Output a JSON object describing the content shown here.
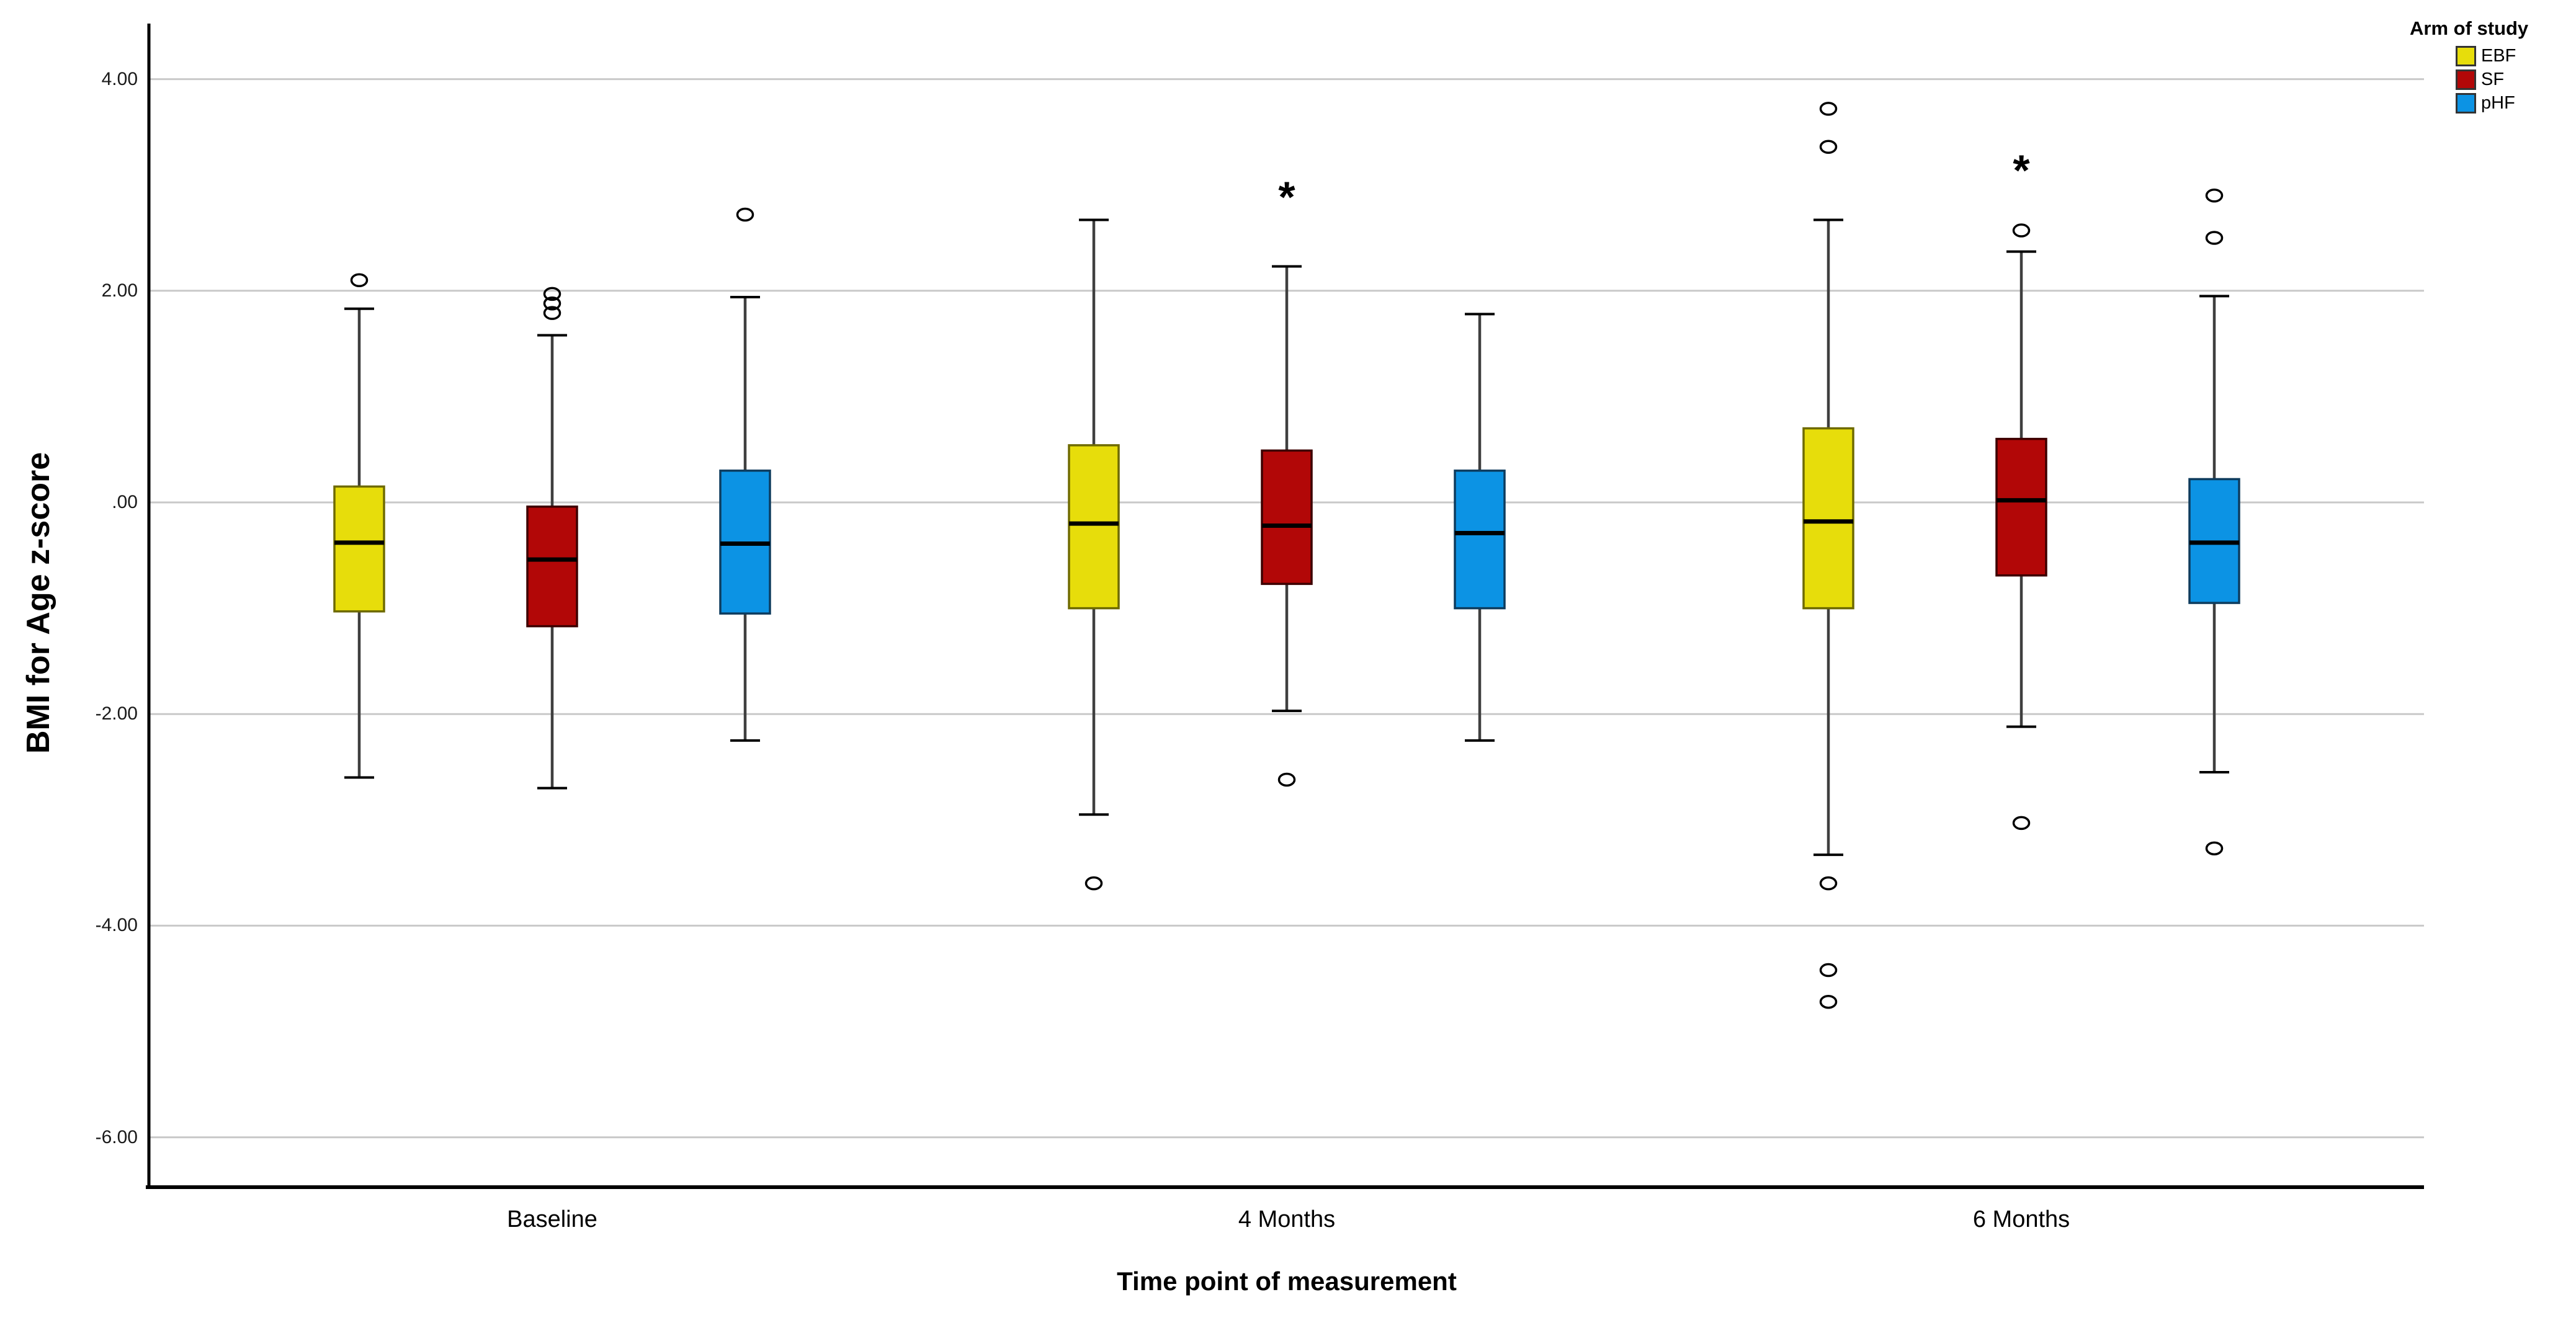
{
  "chart_data": {
    "type": "boxplot",
    "title": "",
    "xlabel": "Time point of measurement",
    "ylabel": "BMI for Age z-score",
    "categories": [
      "Baseline",
      "4 Months",
      "6 Months"
    ],
    "y_axis": {
      "ticks": [
        4,
        2,
        0,
        -2,
        -4,
        -6
      ],
      "tick_labels": [
        "4.00",
        "2.00",
        ".00",
        "-2.00",
        "-4.00",
        "-6.00"
      ],
      "range": [
        -6.45,
        4.5
      ],
      "grid": true,
      "gridline_color": "#c9c9c9"
    },
    "legend": {
      "title": "Arm of study",
      "position": "top-right",
      "entries": [
        {
          "label": "EBF",
          "color": "#e7dd0b"
        },
        {
          "label": "SF",
          "color": "#b20707"
        },
        {
          "label": "pHF",
          "color": "#0c93e4"
        }
      ]
    },
    "extreme_marker_symbol": "*",
    "outlier_marker_symbol": "o",
    "series": [
      {
        "name": "EBF",
        "color": "#e7dd0b",
        "border_color": "#6e6a00",
        "boxes": [
          {
            "category": "Baseline",
            "whisker_low": -2.6,
            "q1": -1.03,
            "median": -0.38,
            "q3": 0.15,
            "whisker_high": 1.83,
            "outliers": [
              2.1
            ],
            "extremes": []
          },
          {
            "category": "4 Months",
            "whisker_low": -2.95,
            "q1": -1.0,
            "median": -0.2,
            "q3": 0.54,
            "whisker_high": 2.67,
            "outliers": [
              -3.6
            ],
            "extremes": []
          },
          {
            "category": "6 Months",
            "whisker_low": -3.33,
            "q1": -1.0,
            "median": -0.18,
            "q3": 0.7,
            "whisker_high": 2.67,
            "outliers": [
              3.72,
              3.36,
              -3.6,
              -4.42,
              -4.72
            ],
            "extremes": []
          }
        ]
      },
      {
        "name": "SF",
        "color": "#b20707",
        "border_color": "#3d0000",
        "boxes": [
          {
            "category": "Baseline",
            "whisker_low": -2.7,
            "q1": -1.17,
            "median": -0.54,
            "q3": -0.04,
            "whisker_high": 1.58,
            "outliers": [
              1.97,
              1.88,
              1.79
            ],
            "extremes": []
          },
          {
            "category": "4 Months",
            "whisker_low": -1.97,
            "q1": -0.77,
            "median": -0.22,
            "q3": 0.49,
            "whisker_high": 2.23,
            "outliers": [
              -2.62
            ],
            "extremes": [
              2.9
            ]
          },
          {
            "category": "6 Months",
            "whisker_low": -2.12,
            "q1": -0.69,
            "median": 0.02,
            "q3": 0.6,
            "whisker_high": 2.37,
            "outliers": [
              2.57,
              -3.03
            ],
            "extremes": [
              3.15
            ]
          }
        ]
      },
      {
        "name": "pHF",
        "color": "#0c93e4",
        "border_color": "#0e3c5e",
        "boxes": [
          {
            "category": "Baseline",
            "whisker_low": -2.25,
            "q1": -1.05,
            "median": -0.39,
            "q3": 0.3,
            "whisker_high": 1.94,
            "outliers": [
              2.72
            ],
            "extremes": []
          },
          {
            "category": "4 Months",
            "whisker_low": -2.25,
            "q1": -1.0,
            "median": -0.29,
            "q3": 0.3,
            "whisker_high": 1.78,
            "outliers": [],
            "extremes": []
          },
          {
            "category": "6 Months",
            "whisker_low": -2.55,
            "q1": -0.95,
            "median": -0.38,
            "q3": 0.22,
            "whisker_high": 1.95,
            "outliers": [
              2.9,
              2.5,
              -3.27
            ],
            "extremes": []
          }
        ]
      }
    ]
  }
}
